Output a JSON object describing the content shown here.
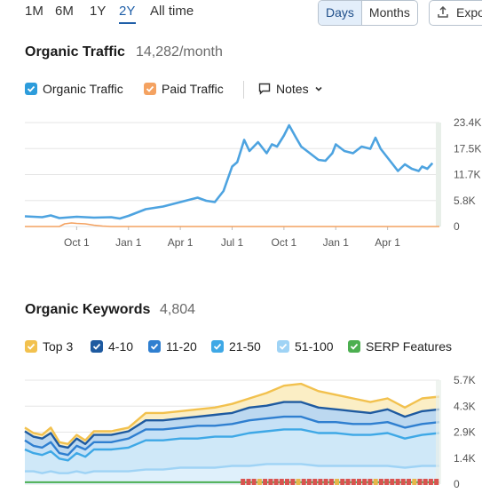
{
  "toolbar": {
    "ranges": [
      "1M",
      "6M",
      "1Y",
      "2Y",
      "All time"
    ],
    "active_range": "2Y",
    "granularity": [
      "Days",
      "Months"
    ],
    "active_granularity": "Days",
    "export_label": "Expo"
  },
  "traffic": {
    "title": "Organic Traffic",
    "value": "14,282/month",
    "legend": [
      {
        "label": "Organic Traffic",
        "color": "#2d9cdb",
        "checked": true
      },
      {
        "label": "Paid Traffic",
        "color": "#f4a261",
        "checked": true
      }
    ],
    "notes_label": "Notes"
  },
  "keywords": {
    "title": "Organic Keywords",
    "value": "4,804",
    "legend": [
      {
        "label": "Top 3",
        "color": "#f2c14e",
        "checked": true
      },
      {
        "label": "4-10",
        "color": "#1e5aa0",
        "checked": true
      },
      {
        "label": "11-20",
        "color": "#2f7fd0",
        "checked": true
      },
      {
        "label": "21-50",
        "color": "#3ea8e6",
        "checked": true
      },
      {
        "label": "51-100",
        "color": "#9fd3f5",
        "checked": true
      },
      {
        "label": "SERP Features",
        "color": "#4caf50",
        "checked": true
      }
    ]
  },
  "chart_data": [
    {
      "type": "line",
      "title": "Organic Traffic",
      "x_ticks": [
        "Oct 1",
        "Jan 1",
        "Apr 1",
        "Jul 1",
        "Oct 1",
        "Jan 1",
        "Apr 1"
      ],
      "y_ticks": [
        "23.4K",
        "17.5K",
        "11.7K",
        "5.8K",
        "0"
      ],
      "ylim": [
        0,
        23400
      ],
      "x_range_months": [
        0,
        24
      ],
      "series": [
        {
          "name": "Organic Traffic",
          "color": "#4da3e0",
          "x": [
            0,
            1,
            1.5,
            2,
            3,
            4,
            5,
            5.5,
            6,
            7,
            7.5,
            8,
            9,
            10,
            10.5,
            11,
            11.5,
            12,
            12.3,
            12.7,
            13,
            13.5,
            14,
            14.3,
            14.6,
            15,
            15.3,
            15.7,
            16,
            16.5,
            17,
            17.4,
            17.8,
            18,
            18.5,
            19,
            19.5,
            20,
            20.3,
            20.6,
            21,
            21.3,
            21.6,
            22,
            22.4,
            22.8,
            23,
            23.3,
            23.6
          ],
          "values": [
            2300,
            2100,
            2500,
            1900,
            2200,
            2000,
            2100,
            1800,
            2400,
            3900,
            4200,
            4500,
            5500,
            6500,
            5800,
            5500,
            8000,
            13500,
            14500,
            19500,
            17000,
            19000,
            16500,
            18500,
            18000,
            20500,
            22800,
            20000,
            18000,
            16500,
            15000,
            14800,
            16500,
            18500,
            17000,
            16500,
            18000,
            17500,
            20000,
            17500,
            15500,
            14000,
            12500,
            14000,
            13000,
            12500,
            13500,
            13000,
            14282
          ]
        },
        {
          "name": "Paid Traffic",
          "color": "#f4a261",
          "x": [
            0,
            2,
            2.3,
            2.7,
            3,
            3.5,
            4,
            4.5,
            5,
            24
          ],
          "values": [
            0,
            0,
            600,
            800,
            700,
            600,
            300,
            100,
            0,
            0
          ]
        }
      ]
    },
    {
      "type": "area",
      "title": "Organic Keywords",
      "x_ticks": [],
      "y_ticks": [
        "5.7K",
        "4.3K",
        "2.9K",
        "1.4K",
        "0"
      ],
      "ylim": [
        0,
        5700
      ],
      "x_range_months": [
        0,
        24
      ],
      "x": [
        0,
        0.5,
        1,
        1.5,
        2,
        2.5,
        3,
        3.5,
        4,
        5,
        6,
        7,
        8,
        9,
        10,
        11,
        12,
        13,
        14,
        15,
        16,
        17,
        18,
        19,
        20,
        21,
        22,
        23,
        24
      ],
      "series": [
        {
          "name": "Top 3",
          "color": "#f2c14e",
          "values": [
            3100,
            2800,
            2700,
            3100,
            2300,
            2200,
            2700,
            2400,
            2900,
            2900,
            3100,
            3900,
            3900,
            4000,
            4100,
            4200,
            4400,
            4700,
            5000,
            5400,
            5500,
            5100,
            4900,
            4700,
            4500,
            4700,
            4200,
            4700,
            4800
          ]
        },
        {
          "name": "4-10",
          "color": "#1e5aa0",
          "values": [
            2900,
            2600,
            2500,
            2800,
            2100,
            2000,
            2500,
            2200,
            2700,
            2700,
            2900,
            3500,
            3500,
            3600,
            3700,
            3800,
            3900,
            4200,
            4300,
            4500,
            4500,
            4200,
            4100,
            4000,
            3900,
            4100,
            3700,
            4000,
            4100
          ]
        },
        {
          "name": "11-20",
          "color": "#2f7fd0",
          "values": [
            2400,
            2100,
            2000,
            2300,
            1700,
            1600,
            2100,
            1900,
            2300,
            2300,
            2500,
            3000,
            3000,
            3100,
            3200,
            3200,
            3300,
            3500,
            3600,
            3700,
            3700,
            3400,
            3400,
            3300,
            3300,
            3400,
            3100,
            3300,
            3400
          ]
        },
        {
          "name": "21-50",
          "color": "#3ea8e6",
          "values": [
            1900,
            1700,
            1600,
            1800,
            1400,
            1300,
            1700,
            1500,
            1900,
            1900,
            2000,
            2400,
            2400,
            2500,
            2500,
            2600,
            2600,
            2800,
            2900,
            3000,
            3000,
            2800,
            2800,
            2700,
            2700,
            2800,
            2500,
            2700,
            2800
          ]
        },
        {
          "name": "51-100",
          "color": "#9fd3f5",
          "values": [
            700,
            700,
            600,
            700,
            600,
            600,
            700,
            600,
            700,
            700,
            700,
            800,
            800,
            900,
            900,
            900,
            1000,
            1000,
            1100,
            1100,
            1100,
            1000,
            1000,
            1000,
            1000,
            1000,
            900,
            1000,
            1000
          ]
        },
        {
          "name": "SERP Features",
          "color": "#4caf50",
          "values": [
            100,
            100,
            100,
            100,
            100,
            100,
            100,
            100,
            100,
            100,
            100,
            100,
            100,
            100,
            100,
            100,
            100,
            100,
            100,
            100,
            100,
            100,
            100,
            100,
            100,
            100,
            100,
            100,
            100
          ]
        }
      ]
    }
  ]
}
